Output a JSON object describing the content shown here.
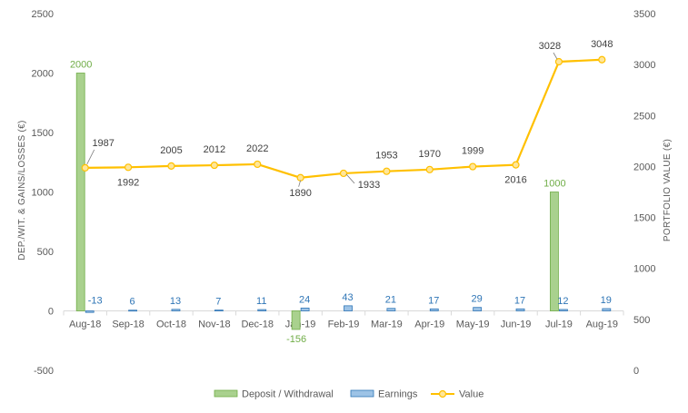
{
  "chart_data": {
    "type": "bar",
    "categories": [
      "Aug-18",
      "Sep-18",
      "Oct-18",
      "Nov-18",
      "Dec-18",
      "Jan-19",
      "Feb-19",
      "Mar-19",
      "Apr-19",
      "May-19",
      "Jun-19",
      "Jul-19",
      "Aug-19"
    ],
    "series": [
      {
        "name": "Deposit / Withdrawal",
        "type": "bar",
        "axis": "left",
        "color": "#a9d18e",
        "values": [
          2000,
          0,
          0,
          0,
          0,
          -156,
          0,
          0,
          0,
          0,
          0,
          1000,
          0
        ],
        "labels": [
          "2000",
          "",
          "",
          "",
          "",
          "-156",
          "",
          "",
          "",
          "",
          "",
          "1000",
          ""
        ]
      },
      {
        "name": "Earnings",
        "type": "bar",
        "axis": "left",
        "color": "#9dc3e6",
        "values": [
          -13,
          6,
          13,
          7,
          11,
          24,
          43,
          21,
          17,
          29,
          17,
          12,
          19
        ],
        "labels": [
          "-13",
          "6",
          "13",
          "7",
          "11",
          "24",
          "43",
          "21",
          "17",
          "29",
          "17",
          "12",
          "19"
        ]
      },
      {
        "name": "Value",
        "type": "line",
        "axis": "right",
        "color": "#ffc000",
        "values": [
          1987,
          1992,
          2005,
          2012,
          2022,
          1890,
          1933,
          1953,
          1970,
          1999,
          2016,
          3028,
          3048
        ],
        "labels": [
          "1987",
          "1992",
          "2005",
          "2012",
          "2022",
          "1890",
          "1933",
          "1953",
          "1970",
          "1999",
          "2016",
          "3028",
          "3048"
        ]
      }
    ],
    "y_left": {
      "label": "DEP./WIT. & GAINS/LOSSES (€)",
      "min": -500,
      "max": 2500,
      "ticks": [
        -500,
        0,
        500,
        1000,
        1500,
        2000,
        2500
      ]
    },
    "y_right": {
      "label": "PORTFOLIO VALUE (€)",
      "min": 0,
      "max": 3500,
      "ticks": [
        0,
        500,
        1000,
        1500,
        2000,
        2500,
        3000,
        3500
      ]
    },
    "grid": false,
    "legend_position": "bottom"
  }
}
